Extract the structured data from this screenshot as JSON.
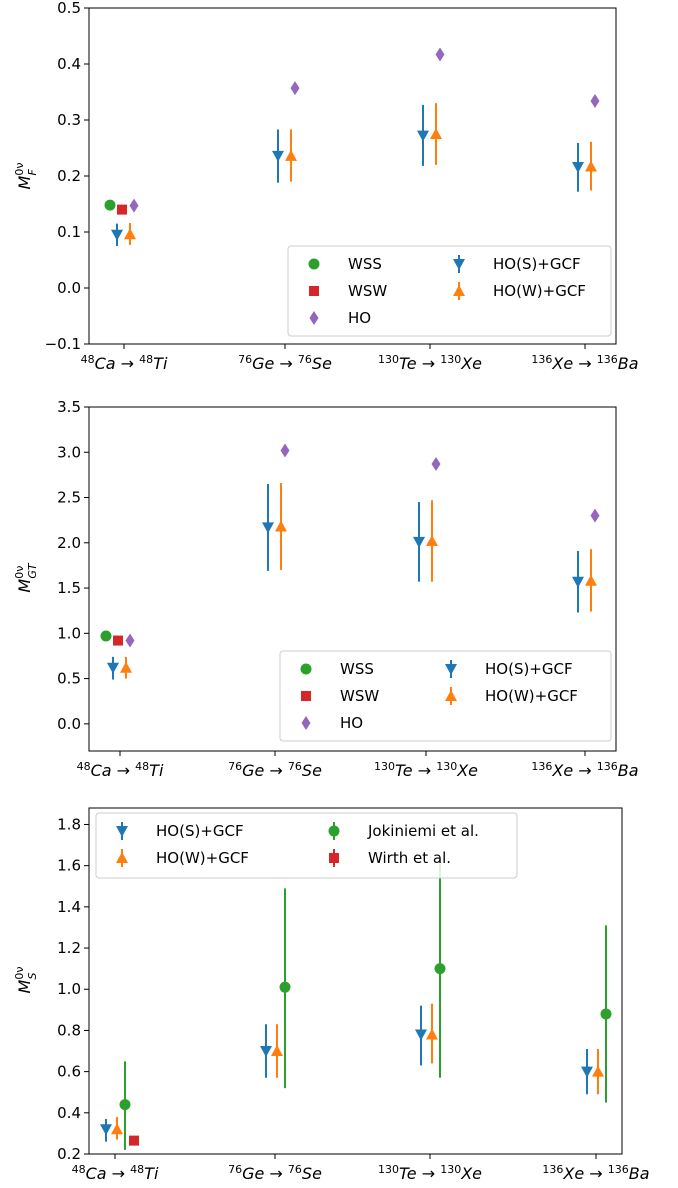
{
  "colors": {
    "WSS": "#2ca02c",
    "WSW": "#d62728",
    "HO": "#9467bd",
    "HO(S)+GCF": "#1f77b4",
    "HO(W)+GCF": "#ff7f0e",
    "Jokiniemi et al.": "#2ca02c",
    "Wirth et al.": "#d62728"
  },
  "chart_data": [
    {
      "type": "scatter",
      "ylabel": "M_F^{0ν}",
      "ylim": [
        -0.1,
        0.5
      ],
      "yticks": [
        "−0.1",
        "0.0",
        "0.1",
        "0.2",
        "0.3",
        "0.4",
        "0.5"
      ],
      "categories": [
        {
          "mass": "48",
          "a": "Ca",
          "mass2": "48",
          "b": "Ti"
        },
        {
          "mass": "76",
          "a": "Ge",
          "mass2": "76",
          "b": "Se"
        },
        {
          "mass": "130",
          "a": "Te",
          "mass2": "130",
          "b": "Xe"
        },
        {
          "mass": "136",
          "a": "Xe",
          "mass2": "136",
          "b": "Ba"
        }
      ],
      "legend": {
        "position": "lower-right",
        "entries": [
          "WSS",
          "WSW",
          "HO",
          "HO(S)+GCF",
          "HO(W)+GCF"
        ]
      },
      "series": [
        {
          "name": "WSS",
          "marker": "circle",
          "points": [
            {
              "cat": 0,
              "y": 0.148
            }
          ]
        },
        {
          "name": "WSW",
          "marker": "square",
          "points": [
            {
              "cat": 0,
              "y": 0.14
            }
          ]
        },
        {
          "name": "HO",
          "marker": "diamond",
          "points": [
            {
              "cat": 0,
              "y": 0.147
            },
            {
              "cat": 1,
              "y": 0.357
            },
            {
              "cat": 2,
              "y": 0.417
            },
            {
              "cat": 3,
              "y": 0.334
            }
          ]
        },
        {
          "name": "HO(S)+GCF",
          "marker": "triangle-down",
          "points": [
            {
              "cat": 0,
              "y": 0.095,
              "lo": 0.075,
              "hi": 0.115
            },
            {
              "cat": 1,
              "y": 0.236,
              "lo": 0.188,
              "hi": 0.283
            },
            {
              "cat": 2,
              "y": 0.272,
              "lo": 0.218,
              "hi": 0.327
            },
            {
              "cat": 3,
              "y": 0.216,
              "lo": 0.172,
              "hi": 0.259
            }
          ]
        },
        {
          "name": "HO(W)+GCF",
          "marker": "triangle-up",
          "points": [
            {
              "cat": 0,
              "y": 0.096,
              "lo": 0.077,
              "hi": 0.116
            },
            {
              "cat": 1,
              "y": 0.236,
              "lo": 0.19,
              "hi": 0.283
            },
            {
              "cat": 2,
              "y": 0.275,
              "lo": 0.22,
              "hi": 0.33
            },
            {
              "cat": 3,
              "y": 0.217,
              "lo": 0.174,
              "hi": 0.261
            }
          ]
        }
      ]
    },
    {
      "type": "scatter",
      "ylabel": "M_GT^{0ν}",
      "ylim": [
        -0.3,
        3.5
      ],
      "yticks": [
        "0.0",
        "0.5",
        "1.0",
        "1.5",
        "2.0",
        "2.5",
        "3.0",
        "3.5"
      ],
      "categories": [
        {
          "mass": "48",
          "a": "Ca",
          "mass2": "48",
          "b": "Ti"
        },
        {
          "mass": "76",
          "a": "Ge",
          "mass2": "76",
          "b": "Se"
        },
        {
          "mass": "130",
          "a": "Te",
          "mass2": "130",
          "b": "Xe"
        },
        {
          "mass": "136",
          "a": "Xe",
          "mass2": "136",
          "b": "Ba"
        }
      ],
      "legend": {
        "position": "lower-right",
        "entries": [
          "WSS",
          "WSW",
          "HO",
          "HO(S)+GCF",
          "HO(W)+GCF"
        ]
      },
      "series": [
        {
          "name": "WSS",
          "marker": "circle",
          "points": [
            {
              "cat": 0,
              "y": 0.97
            }
          ]
        },
        {
          "name": "WSW",
          "marker": "square",
          "points": [
            {
              "cat": 0,
              "y": 0.92
            }
          ]
        },
        {
          "name": "HO",
          "marker": "diamond",
          "points": [
            {
              "cat": 0,
              "y": 0.92
            },
            {
              "cat": 1,
              "y": 3.02
            },
            {
              "cat": 2,
              "y": 2.87
            },
            {
              "cat": 3,
              "y": 2.3
            }
          ]
        },
        {
          "name": "HO(S)+GCF",
          "marker": "triangle-down",
          "points": [
            {
              "cat": 0,
              "y": 0.62,
              "lo": 0.49,
              "hi": 0.74
            },
            {
              "cat": 1,
              "y": 2.17,
              "lo": 1.69,
              "hi": 2.65
            },
            {
              "cat": 2,
              "y": 2.01,
              "lo": 1.57,
              "hi": 2.45
            },
            {
              "cat": 3,
              "y": 1.57,
              "lo": 1.23,
              "hi": 1.91
            }
          ]
        },
        {
          "name": "HO(W)+GCF",
          "marker": "triangle-up",
          "points": [
            {
              "cat": 0,
              "y": 0.62,
              "lo": 0.5,
              "hi": 0.74
            },
            {
              "cat": 1,
              "y": 2.18,
              "lo": 1.7,
              "hi": 2.66
            },
            {
              "cat": 2,
              "y": 2.02,
              "lo": 1.57,
              "hi": 2.47
            },
            {
              "cat": 3,
              "y": 1.58,
              "lo": 1.24,
              "hi": 1.93
            }
          ]
        }
      ]
    },
    {
      "type": "scatter",
      "ylabel": "M_S^{0ν}",
      "ylim": [
        0.2,
        1.88
      ],
      "yticks": [
        "0.2",
        "0.4",
        "0.6",
        "0.8",
        "1.0",
        "1.2",
        "1.4",
        "1.6",
        "1.8"
      ],
      "categories": [
        {
          "mass": "48",
          "a": "Ca",
          "mass2": "48",
          "b": "Ti"
        },
        {
          "mass": "76",
          "a": "Ge",
          "mass2": "76",
          "b": "Se"
        },
        {
          "mass": "130",
          "a": "Te",
          "mass2": "130",
          "b": "Xe"
        },
        {
          "mass": "136",
          "a": "Xe",
          "mass2": "136",
          "b": "Ba"
        }
      ],
      "legend": {
        "position": "upper-left",
        "entries": [
          "HO(S)+GCF",
          "HO(W)+GCF",
          "Jokiniemi et al.",
          "Wirth et al."
        ]
      },
      "series": [
        {
          "name": "HO(S)+GCF",
          "marker": "triangle-down",
          "points": [
            {
              "cat": 0,
              "y": 0.32,
              "lo": 0.26,
              "hi": 0.37
            },
            {
              "cat": 1,
              "y": 0.7,
              "lo": 0.57,
              "hi": 0.83
            },
            {
              "cat": 2,
              "y": 0.78,
              "lo": 0.63,
              "hi": 0.92
            },
            {
              "cat": 3,
              "y": 0.6,
              "lo": 0.49,
              "hi": 0.71
            }
          ]
        },
        {
          "name": "HO(W)+GCF",
          "marker": "triangle-up",
          "points": [
            {
              "cat": 0,
              "y": 0.32,
              "lo": 0.27,
              "hi": 0.38
            },
            {
              "cat": 1,
              "y": 0.7,
              "lo": 0.57,
              "hi": 0.83
            },
            {
              "cat": 2,
              "y": 0.78,
              "lo": 0.64,
              "hi": 0.93
            },
            {
              "cat": 3,
              "y": 0.6,
              "lo": 0.49,
              "hi": 0.71
            }
          ]
        },
        {
          "name": "Jokiniemi et al.",
          "marker": "circle",
          "points": [
            {
              "cat": 0,
              "y": 0.44,
              "lo": 0.22,
              "hi": 0.65
            },
            {
              "cat": 1,
              "y": 1.01,
              "lo": 0.52,
              "hi": 1.49
            },
            {
              "cat": 2,
              "y": 1.1,
              "lo": 0.57,
              "hi": 1.62
            },
            {
              "cat": 3,
              "y": 0.88,
              "lo": 0.45,
              "hi": 1.31
            }
          ]
        },
        {
          "name": "Wirth et al.",
          "marker": "square",
          "points": [
            {
              "cat": 0,
              "y": 0.265,
              "lo": 0.245,
              "hi": 0.285
            }
          ]
        }
      ]
    }
  ]
}
